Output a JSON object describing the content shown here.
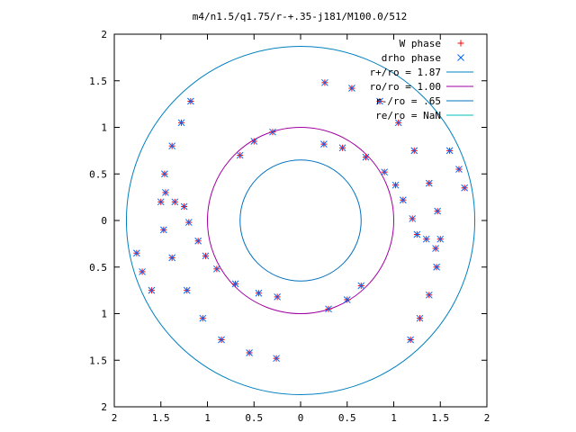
{
  "chart_data": {
    "type": "scatter",
    "title": "m4/n1.5/q1.75/r-+.35-j181/M100.0/512",
    "xlabel": "",
    "ylabel": "",
    "xlim": [
      -2,
      2
    ],
    "ylim": [
      -2,
      2
    ],
    "x_tick_values": [
      -2,
      -1.5,
      -1,
      -0.5,
      0,
      0.5,
      1,
      1.5,
      2
    ],
    "x_tick_labels": [
      "2",
      "1.5",
      "1",
      "0.5",
      "0",
      "0.5",
      "1",
      "1.5",
      "2"
    ],
    "y_tick_values": [
      2,
      1.5,
      1,
      0.5,
      0,
      -0.5,
      -1,
      -1.5,
      -2
    ],
    "y_tick_labels": [
      "2",
      "1.5",
      "1",
      "0.5",
      "0",
      "0.5",
      "1",
      "1.5",
      "2"
    ],
    "grid": false,
    "legend_position": "top-right",
    "series": [
      {
        "name": "W phase",
        "marker": "plus",
        "color": "#ff0000",
        "points": [
          [
            0.26,
            1.48
          ],
          [
            0.55,
            1.42
          ],
          [
            0.85,
            1.28
          ],
          [
            1.05,
            1.05
          ],
          [
            1.22,
            0.75
          ],
          [
            1.38,
            0.4
          ],
          [
            1.47,
            0.1
          ],
          [
            1.5,
            -0.2
          ],
          [
            1.46,
            -0.5
          ],
          [
            1.38,
            -0.8
          ],
          [
            1.28,
            -1.05
          ],
          [
            1.18,
            -1.28
          ],
          [
            -0.26,
            -1.48
          ],
          [
            -0.55,
            -1.42
          ],
          [
            -0.85,
            -1.28
          ],
          [
            -1.05,
            -1.05
          ],
          [
            -1.22,
            -0.75
          ],
          [
            -1.38,
            -0.4
          ],
          [
            -1.47,
            -0.1
          ],
          [
            -1.5,
            0.2
          ],
          [
            -1.46,
            0.5
          ],
          [
            -1.38,
            0.8
          ],
          [
            -1.28,
            1.05
          ],
          [
            -1.18,
            1.28
          ],
          [
            0.25,
            0.82
          ],
          [
            0.45,
            0.78
          ],
          [
            0.7,
            0.68
          ],
          [
            0.9,
            0.52
          ],
          [
            1.02,
            0.38
          ],
          [
            1.1,
            0.22
          ],
          [
            1.2,
            0.02
          ],
          [
            1.25,
            -0.15
          ],
          [
            1.35,
            -0.2
          ],
          [
            1.45,
            -0.3
          ],
          [
            -0.25,
            -0.82
          ],
          [
            -0.45,
            -0.78
          ],
          [
            -0.7,
            -0.68
          ],
          [
            -0.9,
            -0.52
          ],
          [
            -1.02,
            -0.38
          ],
          [
            -1.1,
            -0.22
          ],
          [
            -1.2,
            -0.02
          ],
          [
            -1.25,
            0.15
          ],
          [
            -1.35,
            0.2
          ],
          [
            -1.45,
            0.3
          ],
          [
            0.3,
            -0.95
          ],
          [
            0.5,
            -0.85
          ],
          [
            0.65,
            -0.7
          ],
          [
            -0.3,
            0.95
          ],
          [
            -0.5,
            0.85
          ],
          [
            -0.65,
            0.7
          ],
          [
            1.6,
            0.75
          ],
          [
            1.7,
            0.55
          ],
          [
            1.76,
            0.35
          ],
          [
            -1.6,
            -0.75
          ],
          [
            -1.7,
            -0.55
          ],
          [
            -1.76,
            -0.35
          ]
        ]
      },
      {
        "name": "drho phase",
        "marker": "cross",
        "color": "#0066ff",
        "points": [
          [
            0.26,
            1.48
          ],
          [
            0.55,
            1.42
          ],
          [
            0.85,
            1.28
          ],
          [
            1.05,
            1.05
          ],
          [
            1.22,
            0.75
          ],
          [
            1.38,
            0.4
          ],
          [
            1.47,
            0.1
          ],
          [
            1.5,
            -0.2
          ],
          [
            1.46,
            -0.5
          ],
          [
            1.38,
            -0.8
          ],
          [
            1.28,
            -1.05
          ],
          [
            1.18,
            -1.28
          ],
          [
            -0.26,
            -1.48
          ],
          [
            -0.55,
            -1.42
          ],
          [
            -0.85,
            -1.28
          ],
          [
            -1.05,
            -1.05
          ],
          [
            -1.22,
            -0.75
          ],
          [
            -1.38,
            -0.4
          ],
          [
            -1.47,
            -0.1
          ],
          [
            -1.5,
            0.2
          ],
          [
            -1.46,
            0.5
          ],
          [
            -1.38,
            0.8
          ],
          [
            -1.28,
            1.05
          ],
          [
            -1.18,
            1.28
          ],
          [
            0.25,
            0.82
          ],
          [
            0.45,
            0.78
          ],
          [
            0.7,
            0.68
          ],
          [
            0.9,
            0.52
          ],
          [
            1.02,
            0.38
          ],
          [
            1.1,
            0.22
          ],
          [
            1.2,
            0.02
          ],
          [
            1.25,
            -0.15
          ],
          [
            1.35,
            -0.2
          ],
          [
            1.45,
            -0.3
          ],
          [
            -0.25,
            -0.82
          ],
          [
            -0.45,
            -0.78
          ],
          [
            -0.7,
            -0.68
          ],
          [
            -0.9,
            -0.52
          ],
          [
            -1.02,
            -0.38
          ],
          [
            -1.1,
            -0.22
          ],
          [
            -1.2,
            -0.02
          ],
          [
            -1.25,
            0.15
          ],
          [
            -1.35,
            0.2
          ],
          [
            -1.45,
            0.3
          ],
          [
            0.3,
            -0.95
          ],
          [
            0.5,
            -0.85
          ],
          [
            0.65,
            -0.7
          ],
          [
            -0.3,
            0.95
          ],
          [
            -0.5,
            0.85
          ],
          [
            -0.65,
            0.7
          ],
          [
            1.6,
            0.75
          ],
          [
            1.7,
            0.55
          ],
          [
            1.76,
            0.35
          ],
          [
            -1.6,
            -0.75
          ],
          [
            -1.7,
            -0.55
          ],
          [
            -1.76,
            -0.35
          ]
        ]
      },
      {
        "name": "r+/ro = 1.87",
        "kind": "circle",
        "radius": 1.87,
        "color": "#0080c0"
      },
      {
        "name": "ro/ro = 1.00",
        "kind": "circle",
        "radius": 1.0,
        "color": "#a000a0"
      },
      {
        "name": "r-/ro = .65",
        "kind": "circle",
        "radius": 0.65,
        "color": "#0070c0"
      },
      {
        "name": "re/ro = NaN",
        "kind": "circle",
        "radius": null,
        "color": "#00c0c0"
      }
    ]
  }
}
